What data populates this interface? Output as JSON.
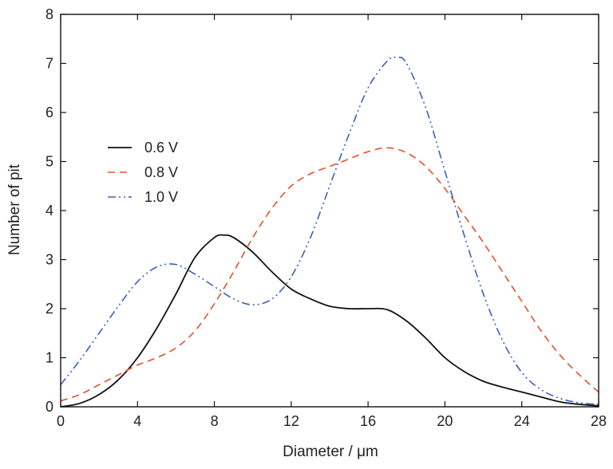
{
  "chart_data": {
    "type": "line",
    "title": "",
    "xlabel": "Diameter / μm",
    "ylabel": "Number of pit",
    "xlim": [
      0,
      28
    ],
    "ylim": [
      0,
      8
    ],
    "xticks": [
      0,
      4,
      8,
      12,
      16,
      20,
      24,
      28
    ],
    "yticks": [
      0,
      1,
      2,
      3,
      4,
      5,
      6,
      7,
      8
    ],
    "grid": false,
    "legend_position": "left",
    "series": [
      {
        "name": "0.6 V",
        "color": "#111111",
        "style": "solid",
        "x": [
          0,
          1,
          2,
          3,
          4,
          5,
          6,
          7,
          8,
          8.5,
          9,
          10,
          11,
          12,
          13,
          14,
          15,
          16,
          17,
          18,
          19,
          20,
          21,
          22,
          23,
          24,
          25,
          26,
          27,
          28
        ],
        "y": [
          0.0,
          0.07,
          0.25,
          0.55,
          1.0,
          1.6,
          2.3,
          3.05,
          3.45,
          3.5,
          3.45,
          3.15,
          2.75,
          2.4,
          2.2,
          2.05,
          2.0,
          2.0,
          1.98,
          1.75,
          1.4,
          1.0,
          0.72,
          0.52,
          0.4,
          0.3,
          0.2,
          0.1,
          0.05,
          0.02
        ]
      },
      {
        "name": "0.8 V",
        "color": "#e8502a",
        "style": "dashed",
        "x": [
          0,
          1,
          2,
          3,
          4,
          5,
          6,
          7,
          8,
          9,
          10,
          11,
          12,
          13,
          14,
          15,
          16,
          17,
          18,
          19,
          20,
          21,
          22,
          23,
          24,
          25,
          26,
          27,
          28
        ],
        "y": [
          0.12,
          0.25,
          0.45,
          0.65,
          0.85,
          1.0,
          1.2,
          1.55,
          2.1,
          2.75,
          3.45,
          4.05,
          4.5,
          4.75,
          4.9,
          5.05,
          5.2,
          5.28,
          5.18,
          4.9,
          4.45,
          3.9,
          3.35,
          2.75,
          2.15,
          1.55,
          1.05,
          0.65,
          0.3
        ]
      },
      {
        "name": "1.0 V",
        "color": "#3a5fc0",
        "style": "dash-dot-dot",
        "x": [
          0,
          1,
          2,
          3,
          4,
          5,
          6,
          7,
          8,
          9,
          10,
          11,
          12,
          13,
          14,
          15,
          16,
          17,
          17.5,
          18,
          19,
          20,
          21,
          22,
          23,
          24,
          25,
          26,
          27,
          28
        ],
        "y": [
          0.45,
          0.95,
          1.5,
          2.05,
          2.55,
          2.85,
          2.9,
          2.7,
          2.45,
          2.2,
          2.08,
          2.2,
          2.65,
          3.45,
          4.5,
          5.55,
          6.5,
          7.05,
          7.12,
          7.0,
          6.1,
          4.8,
          3.5,
          2.3,
          1.35,
          0.7,
          0.35,
          0.17,
          0.08,
          0.05
        ]
      }
    ]
  }
}
